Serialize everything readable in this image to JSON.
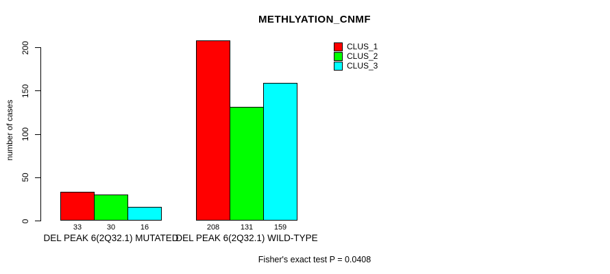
{
  "chart_data": {
    "type": "bar",
    "title": "METHLYATION_CNMF",
    "xlabel": "",
    "ylabel": "number of cases",
    "categories": [
      "DEL PEAK 6(2Q32.1) MUTATED",
      "DEL PEAK 6(2Q32.1) WILD-TYPE"
    ],
    "series": [
      {
        "name": "CLUS_1",
        "color": "#ff0000",
        "values": [
          33,
          208
        ]
      },
      {
        "name": "CLUS_2",
        "color": "#00ff00",
        "values": [
          30,
          131
        ]
      },
      {
        "name": "CLUS_3",
        "color": "#00ffff",
        "values": [
          16,
          159
        ]
      }
    ],
    "bar_value_labels": [
      [
        33,
        30,
        16
      ],
      [
        208,
        131,
        159
      ]
    ],
    "ylim": [
      0,
      200
    ],
    "yticks": [
      0,
      50,
      100,
      150,
      200
    ],
    "grid": false,
    "legend_position": "top-right",
    "bar_border_color": "#000000",
    "axis_color": "#000000",
    "background_color": "#ffffff",
    "annotation": "Fisher's exact test P = 0.0408"
  }
}
